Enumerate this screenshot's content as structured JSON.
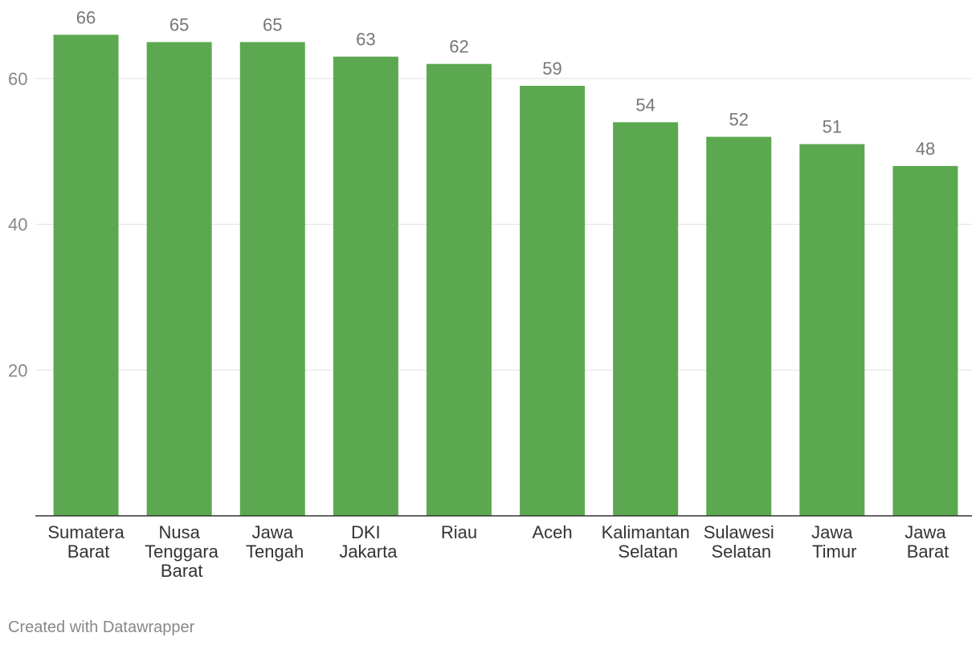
{
  "chart_data": {
    "type": "bar",
    "categories": [
      "Sumatera Barat",
      "Nusa Tenggara Barat",
      "Jawa Tengah",
      "DKI Jakarta",
      "Riau",
      "Aceh",
      "Kalimantan Selatan",
      "Sulawesi Selatan",
      "Jawa Timur",
      "Jawa Barat"
    ],
    "values": [
      66,
      65,
      65,
      63,
      62,
      59,
      54,
      52,
      51,
      48
    ],
    "color": "#5ca850",
    "ylim": [
      0,
      70
    ],
    "yticks": [
      20,
      40,
      60
    ],
    "grid": true,
    "credit": "Created with Datawrapper"
  }
}
